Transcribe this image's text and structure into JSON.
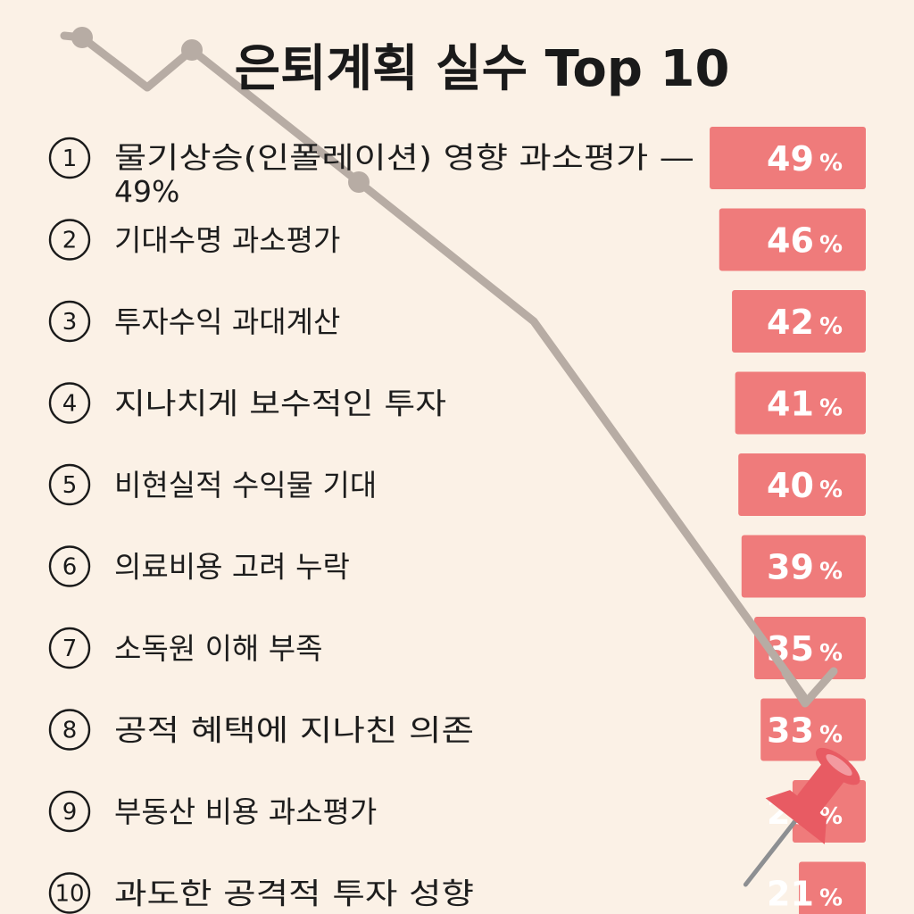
{
  "title": "은퇴계획 실수 Top 10",
  "colors": {
    "background": "#fbf1e6",
    "bar": "#ef7b7b",
    "bar_text": "#ffffff",
    "trend_line": "#b7aca4",
    "pin": "#e85b63"
  },
  "icons": [
    "trend-arrow-icon",
    "push-pin-icon"
  ],
  "chart_data": {
    "type": "bar",
    "orientation": "horizontal",
    "title": "은퇴계획 실수 Top 10",
    "xlabel": "",
    "ylabel": "",
    "xlim": [
      0,
      50
    ],
    "grid": false,
    "categories": [
      {
        "rank": "1",
        "label": "물기상승(인폴레이션) 영향 과소평가 —",
        "label2": "49%"
      },
      {
        "rank": "2",
        "label": "기대수명 과소평가"
      },
      {
        "rank": "3",
        "label": "투자수익 과대계산"
      },
      {
        "rank": "4",
        "label": "지나치게 보수적인 투자"
      },
      {
        "rank": "5",
        "label": "비현실적 수익물 기대"
      },
      {
        "rank": "6",
        "label": "의료비용 고려 누락"
      },
      {
        "rank": "7",
        "label": "소독원 이해 부족"
      },
      {
        "rank": "8",
        "label": "공적 혜택에 지나친 의존"
      },
      {
        "rank": "9",
        "label": "부동산 비용 과소평가"
      },
      {
        "rank": "10",
        "label": "과도한 공격적 투자 성향"
      }
    ],
    "values": [
      49,
      46,
      42,
      41,
      40,
      39,
      35,
      33,
      23,
      21
    ],
    "value_suffix": "%"
  }
}
